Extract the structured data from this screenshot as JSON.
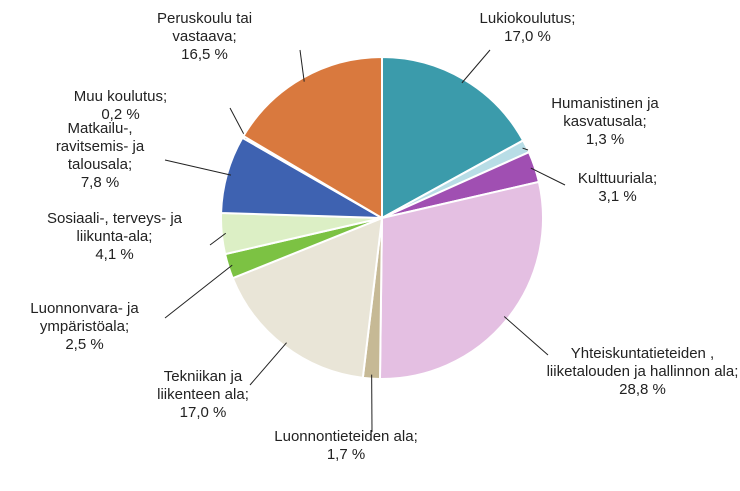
{
  "chart_data": {
    "type": "pie",
    "categories": [
      "Lukiokoulutus",
      "Humanistinen ja kasvatusala",
      "Kulttuuriala",
      "Yhteiskuntatieteiden , liiketalouden ja hallinnon ala",
      "Luonnontieteiden ala",
      "Tekniikan ja liikenteen ala",
      "Luonnonvara- ja ympäristöala",
      "Sosiaali-, terveys- ja liikunta-ala",
      "Matkailu-, ravitsemis- ja talousala",
      "Muu koulutus",
      "Peruskoulu tai vastaava"
    ],
    "values": [
      17.0,
      1.3,
      3.1,
      28.8,
      1.7,
      17.0,
      2.5,
      4.1,
      7.8,
      0.2,
      16.5
    ],
    "value_labels": [
      "17,0 %",
      "1,3 %",
      "3,1 %",
      "28,8 %",
      "1,7 %",
      "17,0 %",
      "2,5 %",
      "4,1 %",
      "7,8 %",
      "0,2 %",
      "16,5 %"
    ],
    "label_separator": ";",
    "colors": [
      "#3b9bab",
      "#b8dde6",
      "#a04fb2",
      "#e4bfe2",
      "#c6b995",
      "#e9e5d7",
      "#7cc243",
      "#dcefc5",
      "#3e62b1",
      "#bfbfbf",
      "#d9793e"
    ]
  }
}
